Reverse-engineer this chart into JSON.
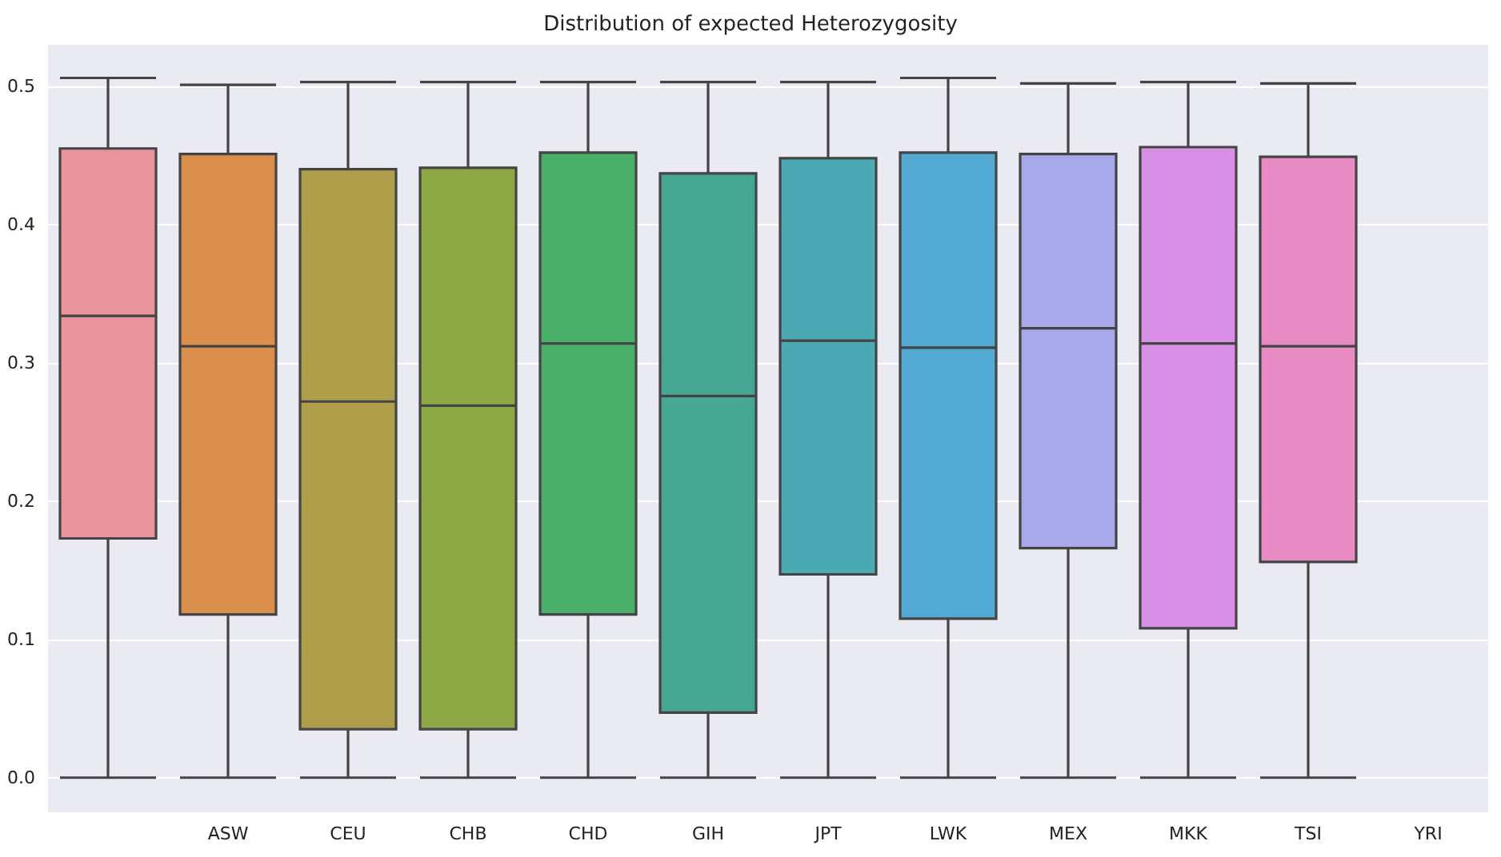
{
  "chart_data": {
    "type": "box",
    "title": "Distribution of expected Heterozygosity",
    "categories": [
      null,
      "ASW",
      "CEU",
      "CHB",
      "CHD",
      "GIH",
      "JPT",
      "LWK",
      "MEX",
      "MKK",
      "TSI",
      "YRI"
    ],
    "boxes": [
      {
        "low": 0,
        "q1": 0.173,
        "median": 0.334,
        "q3": 0.455,
        "high": 0.506
      },
      {
        "low": 0,
        "q1": 0.118,
        "median": 0.312,
        "q3": 0.451,
        "high": 0.501
      },
      {
        "low": 0,
        "q1": 0.035,
        "median": 0.272,
        "q3": 0.44,
        "high": 0.503
      },
      {
        "low": 0,
        "q1": 0.035,
        "median": 0.269,
        "q3": 0.441,
        "high": 0.503
      },
      {
        "low": 0,
        "q1": 0.118,
        "median": 0.314,
        "q3": 0.452,
        "high": 0.503
      },
      {
        "low": 0,
        "q1": 0.047,
        "median": 0.276,
        "q3": 0.437,
        "high": 0.503
      },
      {
        "low": 0,
        "q1": 0.147,
        "median": 0.316,
        "q3": 0.448,
        "high": 0.503
      },
      {
        "low": 0,
        "q1": 0.115,
        "median": 0.311,
        "q3": 0.452,
        "high": 0.506
      },
      {
        "low": 0,
        "q1": 0.166,
        "median": 0.325,
        "q3": 0.451,
        "high": 0.502
      },
      {
        "low": 0,
        "q1": 0.108,
        "median": 0.314,
        "q3": 0.456,
        "high": 0.503
      },
      {
        "low": 0,
        "q1": 0.156,
        "median": 0.312,
        "q3": 0.449,
        "high": 0.502
      },
      null
    ],
    "colors": [
      "#e8939d",
      "#db8f4d",
      "#b09f4a",
      "#8ea846",
      "#4aaf68",
      "#46a893",
      "#4aa9b3",
      "#52a9d1",
      "#a8a9eb",
      "#d790e6",
      "#e88bc4",
      null
    ],
    "ylim": [
      -0.025,
      0.53
    ],
    "yticks": [
      {
        "value": 0,
        "label": "0.0"
      },
      {
        "value": 0.1,
        "label": "0.1"
      },
      {
        "value": 0.2,
        "label": "0.2"
      },
      {
        "value": 0.3,
        "label": "0.3"
      },
      {
        "value": 0.4,
        "label": "0.4"
      },
      {
        "value": 0.5,
        "label": "0.5"
      }
    ],
    "grid": "y"
  }
}
